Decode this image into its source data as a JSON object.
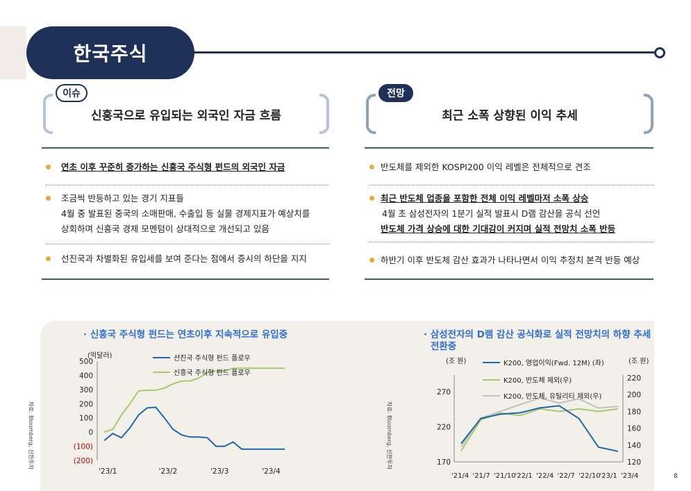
{
  "title": "한국주식",
  "left": {
    "tag": "이슈",
    "headline": "신흥국으로 유입되는 외국인 자금 흐름",
    "bullets": [
      {
        "line1": "연초 이후 꾸준히 증가하는 신흥국 주식형 펀드의 외국인 자금"
      },
      {
        "line1": "조금씩 반등하고 있는 경기 지표들",
        "line2": "4월 중 발표된 중국의 소매판매, 수출입 등 실물 경제지표가 예상치를",
        "line3": "상회하며 신흥국 경제 모멘텀이 상대적으로 개선되고 있음"
      },
      {
        "line1": "선진국과 차별화된 유입세를 보여 준다는 점에서 증시의 하단을 지지"
      }
    ]
  },
  "right": {
    "tag": "전망",
    "headline": "최근 소폭 상향된 이익 추세",
    "bullets": [
      {
        "line1": "반도체를 제외한 KOSPI200 이익 레벨은 전체적으로 견조"
      },
      {
        "line1": "최근 반도체 업종을 포함한 전체 이익 레벨마저 소폭 상승",
        "line2": "4월 초 삼성전자의 1분기 실적 발표시 D램 감산을 공식 선언",
        "line3": "반도체 가격 상승에 대한 기대감이 커지며 실적 전망치 소폭 반등"
      },
      {
        "line1": "하반기 이후 반도체 감산 효과가 나타나면서 이익 추정치 본격 반등 예상"
      }
    ]
  },
  "chart1": {
    "title": "· 신흥국 주식형 펀드는 연초이후 지속적으로 유입중",
    "source": "자료: Bloomberg, 신한투자",
    "unit": "(억달러)",
    "yticks": [
      "500",
      "400",
      "300",
      "200",
      "100",
      "0",
      "(100)",
      "(200)"
    ],
    "xticks": [
      "'23/1",
      "'23/2",
      "'23/3",
      "'23/4"
    ],
    "legend": [
      "선진국 주식형 펀드 플로우",
      "신흥국 주식형 펀드 플로우"
    ]
  },
  "chart2": {
    "title_line1": "· 삼성전자의 D램 감산 공식화로 실적 전망치의 하향 추세",
    "title_line2": "전환중",
    "source": "자료: Bloomberg, 신한투자",
    "unit_left": "(조 원)",
    "unit_right": "(조 원)",
    "yticks_left": [
      "270",
      "220",
      "170"
    ],
    "yticks_right": [
      "220",
      "200",
      "180",
      "160",
      "140",
      "120"
    ],
    "xticks": [
      "'21/4",
      "'21/7",
      "'21/10",
      "'22/1",
      "'22/4",
      "'22/7",
      "'22/10",
      "'23/1",
      "'23/4"
    ],
    "legend": [
      "K200, 영업이익(Fwd. 12M) (좌)",
      "K200, 반도체 제외(우)",
      "K200, 반도체, 유틸리티 제외(우)"
    ]
  },
  "page_number": "8",
  "colors": {
    "navy": "#1f3158",
    "blue_line": "#1f67b0",
    "green_line": "#a6c96a",
    "gray_line": "#c0c0c0",
    "bullet": "#e8a838",
    "red_tick": "#c00000",
    "title_blue": "#2f6fd6"
  },
  "chart_data": [
    {
      "type": "line",
      "ylabel": "(억달러)",
      "ylim": [
        -200,
        500
      ],
      "categories": [
        "'23/1",
        "",
        "",
        "",
        "",
        "",
        "",
        "'23/2",
        "",
        "",
        "",
        "",
        "",
        "'23/3",
        "",
        "",
        "",
        "",
        "",
        "'23/4",
        "",
        ""
      ],
      "series": [
        {
          "name": "선진국 주식형 펀드 플로우",
          "values": [
            -60,
            -10,
            -40,
            30,
            120,
            170,
            175,
            100,
            20,
            -20,
            -35,
            -35,
            -40,
            -100,
            -100,
            -70,
            -120,
            -120,
            -120,
            -120,
            -120,
            -120
          ]
        },
        {
          "name": "신흥국 주식형 펀드 플로우",
          "values": [
            0,
            20,
            120,
            200,
            290,
            295,
            295,
            310,
            340,
            360,
            360,
            380,
            420,
            430,
            430,
            450,
            450,
            450,
            450,
            450,
            450,
            450
          ]
        }
      ]
    },
    {
      "type": "line",
      "y_left_lim": [
        170,
        290
      ],
      "y_right_lim": [
        120,
        220
      ],
      "categories": [
        "'21/4",
        "'21/7",
        "'21/10",
        "'22/1",
        "'22/4",
        "'22/7",
        "'22/10",
        "'23/1",
        "'23/4"
      ],
      "series": [
        {
          "name": "K200, 영업이익(Fwd. 12M) (좌)",
          "axis": "left",
          "values": [
            196,
            232,
            238,
            240,
            247,
            250,
            232,
            191,
            185
          ]
        },
        {
          "name": "K200, 반도체 제외(우)",
          "axis": "right",
          "values": [
            133,
            170,
            178,
            175,
            183,
            180,
            183,
            180,
            183
          ]
        },
        {
          "name": "K200, 반도체, 유틸리티 제외(우)",
          "axis": "right",
          "values": [
            138,
            172,
            180,
            188,
            196,
            190,
            195,
            184,
            186
          ]
        }
      ]
    }
  ]
}
